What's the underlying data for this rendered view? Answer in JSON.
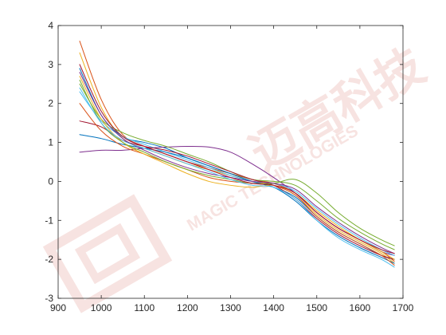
{
  "chart_data": {
    "type": "line",
    "title": "",
    "xlabel": "",
    "ylabel": "",
    "xlim": [
      900,
      1700
    ],
    "ylim": [
      -3,
      4
    ],
    "xticks": [
      900,
      1000,
      1100,
      1200,
      1300,
      1400,
      1500,
      1600,
      1700
    ],
    "yticks": [
      -3,
      -2,
      -1,
      0,
      1,
      2,
      3,
      4
    ],
    "grid": false,
    "legend": "none",
    "x": [
      950,
      1000,
      1050,
      1100,
      1150,
      1200,
      1250,
      1300,
      1350,
      1400,
      1450,
      1500,
      1550,
      1600,
      1650,
      1680
    ],
    "series": [
      {
        "color": "#D95319",
        "values": [
          3.6,
          2.1,
          1.2,
          0.9,
          0.7,
          0.5,
          0.35,
          0.2,
          0.05,
          -0.05,
          -0.3,
          -0.8,
          -1.2,
          -1.5,
          -1.8,
          -2.05
        ]
      },
      {
        "color": "#EDB120",
        "values": [
          3.3,
          1.9,
          1.1,
          0.85,
          0.65,
          0.45,
          0.3,
          0.15,
          0.0,
          -0.1,
          -0.35,
          -0.85,
          -1.25,
          -1.55,
          -1.85,
          -2.1
        ]
      },
      {
        "color": "#0072BD",
        "values": [
          2.9,
          1.7,
          1.15,
          1.0,
          0.85,
          0.6,
          0.4,
          0.2,
          0.0,
          -0.15,
          -0.4,
          -0.9,
          -1.3,
          -1.6,
          -1.9,
          -2.0
        ]
      },
      {
        "color": "#7E2F8E",
        "values": [
          0.75,
          0.8,
          0.8,
          0.85,
          0.88,
          0.9,
          0.88,
          0.75,
          0.45,
          0.1,
          -0.3,
          -0.8,
          -1.2,
          -1.5,
          -1.8,
          -1.9
        ]
      },
      {
        "color": "#77AC30",
        "values": [
          2.5,
          1.6,
          1.25,
          1.05,
          0.9,
          0.7,
          0.5,
          0.25,
          0.05,
          0.0,
          -0.1,
          -0.5,
          -0.95,
          -1.3,
          -1.6,
          -1.75
        ]
      },
      {
        "color": "#4DBEEE",
        "values": [
          2.3,
          1.55,
          1.15,
          0.95,
          0.75,
          0.55,
          0.35,
          0.15,
          0.0,
          -0.05,
          -0.25,
          -0.7,
          -1.1,
          -1.45,
          -1.75,
          -1.9
        ]
      },
      {
        "color": "#A2142F",
        "values": [
          1.55,
          1.4,
          1.05,
          0.9,
          0.8,
          0.65,
          0.45,
          0.25,
          0.05,
          -0.1,
          -0.45,
          -0.95,
          -1.35,
          -1.65,
          -1.9,
          -2.0
        ]
      },
      {
        "color": "#0072BD",
        "values": [
          1.2,
          1.1,
          0.95,
          0.85,
          0.75,
          0.6,
          0.4,
          0.2,
          0.0,
          -0.15,
          -0.5,
          -1.0,
          -1.4,
          -1.7,
          -1.95,
          -2.1
        ]
      },
      {
        "color": "#D95319",
        "values": [
          2.0,
          1.3,
          0.9,
          0.7,
          0.5,
          0.3,
          0.1,
          0.0,
          -0.05,
          -0.1,
          -0.35,
          -0.9,
          -1.3,
          -1.6,
          -1.9,
          -2.15
        ]
      },
      {
        "color": "#EDB120",
        "values": [
          2.7,
          1.6,
          1.0,
          0.7,
          0.45,
          0.2,
          0.0,
          -0.1,
          -0.15,
          -0.1,
          -0.3,
          -0.75,
          -1.15,
          -1.5,
          -1.8,
          -2.0
        ]
      },
      {
        "color": "#77AC30",
        "values": [
          2.6,
          1.5,
          1.0,
          0.75,
          0.5,
          0.3,
          0.15,
          0.05,
          -0.05,
          -0.05,
          0.05,
          -0.3,
          -0.8,
          -1.2,
          -1.5,
          -1.65
        ]
      },
      {
        "color": "#7E2F8E",
        "values": [
          2.8,
          1.7,
          1.1,
          0.8,
          0.55,
          0.35,
          0.2,
          0.1,
          0.0,
          -0.05,
          -0.2,
          -0.65,
          -1.05,
          -1.4,
          -1.7,
          -1.85
        ]
      },
      {
        "color": "#4DBEEE",
        "values": [
          2.4,
          1.5,
          1.05,
          0.85,
          0.65,
          0.45,
          0.25,
          0.05,
          -0.1,
          -0.15,
          -0.45,
          -1.0,
          -1.45,
          -1.75,
          -2.0,
          -2.2
        ]
      },
      {
        "color": "#A2142F",
        "values": [
          3.0,
          1.8,
          1.15,
          0.9,
          0.7,
          0.5,
          0.3,
          0.1,
          -0.05,
          -0.1,
          -0.3,
          -0.8,
          -1.2,
          -1.5,
          -1.75,
          -1.85
        ]
      }
    ]
  },
  "watermark": {
    "chinese_text": "迈高科技",
    "english_text": "MAGIC TECHNOLOGIES",
    "color": "#E8B0A8"
  }
}
